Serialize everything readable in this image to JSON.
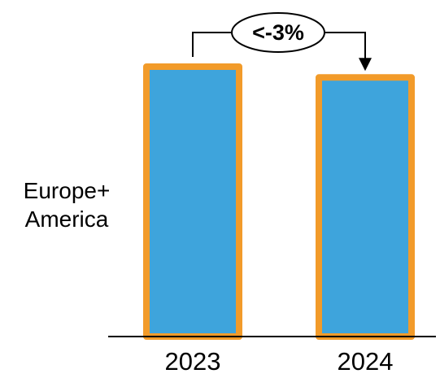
{
  "chart_data": {
    "type": "bar",
    "categories": [
      "2023",
      "2024"
    ],
    "values": [
      100,
      96
    ],
    "ylim": [
      0,
      100
    ],
    "series_label": [
      "Europe+",
      "America"
    ],
    "annotation": {
      "text": "<-3%",
      "from": "2023",
      "to": "2024"
    },
    "colors": {
      "bar_fill": "#3ea4dc",
      "bar_border": "#f29b2a",
      "axis": "#000000"
    }
  }
}
